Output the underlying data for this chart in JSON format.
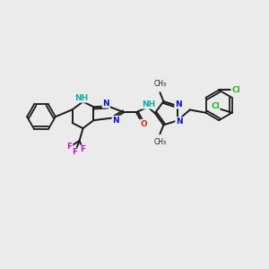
{
  "bg_color": "#ebebeb",
  "bond_color": "#1a1a1a",
  "bond_width": 1.4,
  "atom_colors": {
    "N": "#1010cc",
    "NH": "#10aaaa",
    "O": "#dd2020",
    "F": "#cc10cc",
    "Cl": "#22bb22",
    "C": "#1a1a1a"
  },
  "font_size_atom": 7.5,
  "font_size_small": 6.5
}
